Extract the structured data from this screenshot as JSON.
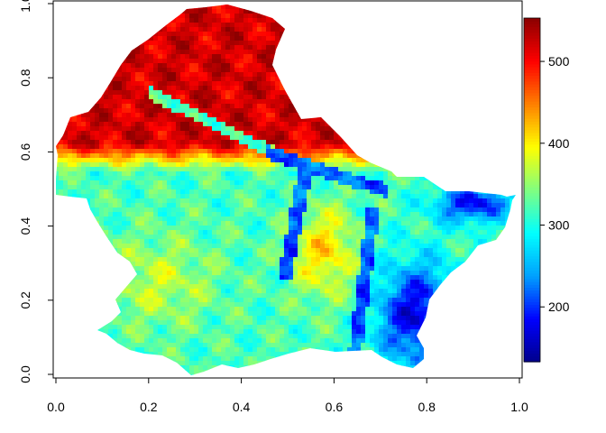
{
  "chart_data": {
    "type": "heatmap",
    "title": "",
    "xlabel": "",
    "ylabel": "",
    "xlim": [
      0,
      1
    ],
    "ylim": [
      0,
      1
    ],
    "x_ticks": [
      "0.0",
      "0.2",
      "0.4",
      "0.6",
      "0.8",
      "1.0"
    ],
    "y_ticks": [
      "0.0",
      "0.2",
      "0.4",
      "0.6",
      "0.8",
      "1.0"
    ],
    "colorbar": {
      "range": [
        133,
        553
      ],
      "ticks": [
        "200",
        "300",
        "400",
        "500"
      ],
      "colormap": "blue-cyan-yellow-red (jet)",
      "colors": [
        "#00008b",
        "#0000ff",
        "#00a0ff",
        "#00ffff",
        "#80ff80",
        "#ffff00",
        "#ff8000",
        "#ff0000",
        "#8b0000"
      ]
    },
    "description_regions": [
      {
        "area": "north (y 0.6-1.0)",
        "approx_value": 500
      },
      {
        "area": "central plateau (y 0.2-0.55)",
        "approx_value": 330
      },
      {
        "area": "river valleys",
        "approx_value": 240
      },
      {
        "area": "east/southeast lowlands",
        "approx_value": 180
      }
    ]
  }
}
